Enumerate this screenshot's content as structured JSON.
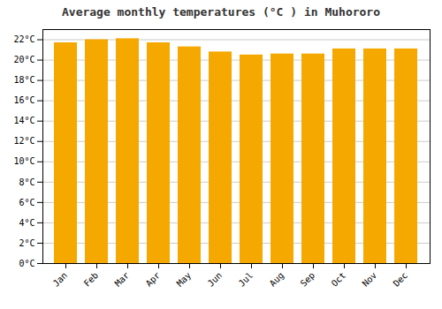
{
  "chart_data": {
    "type": "bar",
    "title": "Average monthly temperatures (°C ) in Muhororo",
    "categories": [
      "Jan",
      "Feb",
      "Mar",
      "Apr",
      "May",
      "Jun",
      "Jul",
      "Aug",
      "Sep",
      "Oct",
      "Nov",
      "Dec"
    ],
    "values": [
      21.7,
      22.0,
      22.1,
      21.7,
      21.3,
      20.8,
      20.5,
      20.6,
      20.6,
      21.1,
      21.1,
      21.1
    ],
    "color": "#F5A800",
    "ylim": [
      0,
      23
    ],
    "yticks": [
      {
        "value": 0,
        "label": "0°C"
      },
      {
        "value": 2,
        "label": "2°C"
      },
      {
        "value": 4,
        "label": "4°C"
      },
      {
        "value": 6,
        "label": "6°C"
      },
      {
        "value": 8,
        "label": "8°C"
      },
      {
        "value": 10,
        "label": "10°C"
      },
      {
        "value": 12,
        "label": "12°C"
      },
      {
        "value": 14,
        "label": "14°C"
      },
      {
        "value": 16,
        "label": "16°C"
      },
      {
        "value": 18,
        "label": "18°C"
      },
      {
        "value": 20,
        "label": "20°C"
      },
      {
        "value": 22,
        "label": "22°C"
      }
    ],
    "grid": true
  }
}
